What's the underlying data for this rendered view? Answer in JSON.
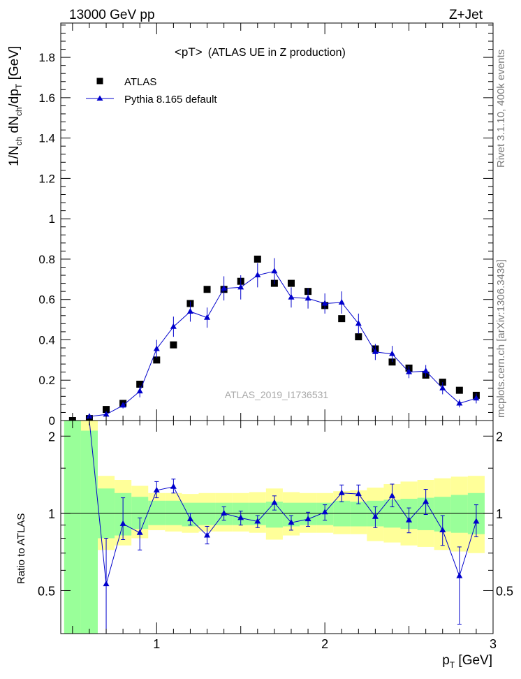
{
  "header": {
    "left_label": "13000 GeV pp",
    "right_label": "Z+Jet"
  },
  "side_labels": {
    "rivet": "Rivet 3.1.10,  400k events",
    "mcplots": "mcplots.cern.ch [arXiv:1306.3436]"
  },
  "chart_data": [
    {
      "type": "scatter",
      "title": "<pT>",
      "subtitle": "(ATLAS UE in Z production)",
      "watermark": "ATLAS_2019_I1736531",
      "xlabel_main": "p",
      "xlabel_sub": "T",
      "xlabel_unit": " [GeV]",
      "ylabel_parts": [
        "1/N",
        "ch",
        " dN",
        "ch",
        "/dp",
        "T",
        " [GeV]"
      ],
      "xlim": [
        0.43,
        3.0
      ],
      "ylim": [
        0,
        1.97
      ],
      "x_ticks": [
        "1",
        "2",
        "3"
      ],
      "y_ticks": [
        "0",
        "0.2",
        "0.4",
        "0.6",
        "0.8",
        "1",
        "1.2",
        "1.4",
        "1.6",
        "1.8"
      ],
      "legend_position": "top-left",
      "series": [
        {
          "name": "ATLAS",
          "style": "markers-square",
          "color": "#000000",
          "x": [
            0.5,
            0.6,
            0.7,
            0.8,
            0.9,
            1.0,
            1.1,
            1.2,
            1.3,
            1.4,
            1.5,
            1.6,
            1.7,
            1.8,
            1.9,
            2.0,
            2.1,
            2.2,
            2.3,
            2.4,
            2.5,
            2.6,
            2.7,
            2.8,
            2.9
          ],
          "y": [
            0.0,
            0.01,
            0.055,
            0.085,
            0.18,
            0.3,
            0.375,
            0.58,
            0.65,
            0.65,
            0.69,
            0.8,
            0.68,
            0.68,
            0.64,
            0.57,
            0.505,
            0.415,
            0.355,
            0.29,
            0.26,
            0.225,
            0.19,
            0.15,
            0.125
          ]
        },
        {
          "name": "Pythia 8.165 default",
          "style": "line-triangle",
          "color": "#0000cc",
          "x": [
            0.6,
            0.7,
            0.8,
            0.9,
            1.0,
            1.1,
            1.2,
            1.3,
            1.4,
            1.5,
            1.6,
            1.7,
            1.8,
            1.9,
            2.0,
            2.1,
            2.2,
            2.3,
            2.4,
            2.5,
            2.6,
            2.7,
            2.8,
            2.9
          ],
          "y": [
            0.02,
            0.03,
            0.075,
            0.145,
            0.355,
            0.465,
            0.54,
            0.51,
            0.655,
            0.66,
            0.72,
            0.74,
            0.61,
            0.605,
            0.58,
            0.585,
            0.48,
            0.34,
            0.33,
            0.24,
            0.245,
            0.16,
            0.085,
            0.11
          ],
          "yerr": [
            0.005,
            0.01,
            0.015,
            0.03,
            0.045,
            0.05,
            0.05,
            0.05,
            0.06,
            0.06,
            0.06,
            0.065,
            0.05,
            0.05,
            0.05,
            0.055,
            0.05,
            0.04,
            0.04,
            0.03,
            0.03,
            0.03,
            0.02,
            0.025
          ]
        }
      ]
    },
    {
      "type": "scatter",
      "title": "",
      "ylabel": "Ratio to ATLAS",
      "xlim": [
        0.43,
        3.0
      ],
      "ylim": [
        0.34,
        2.3
      ],
      "x_ticks": [
        "1",
        "2",
        "3"
      ],
      "y_ticks": [
        "0.5",
        "1",
        "2"
      ],
      "reference_line": 1,
      "colors": {
        "band_inner": "#99ff99",
        "band_outer": "#ffff99",
        "ratio": "#0000cc"
      },
      "band": {
        "x_edges": [
          0.45,
          0.55,
          0.65,
          0.75,
          0.85,
          0.95,
          1.05,
          1.15,
          1.25,
          1.35,
          1.45,
          1.55,
          1.65,
          1.75,
          1.85,
          1.95,
          2.05,
          2.15,
          2.25,
          2.35,
          2.45,
          2.55,
          2.65,
          2.75,
          2.85,
          2.95
        ],
        "inner_low": [
          0.34,
          0.34,
          0.8,
          0.82,
          0.87,
          0.9,
          0.9,
          0.89,
          0.9,
          0.9,
          0.9,
          0.9,
          0.88,
          0.89,
          0.9,
          0.9,
          0.89,
          0.89,
          0.89,
          0.88,
          0.87,
          0.86,
          0.85,
          0.84,
          0.83
        ],
        "inner_high": [
          2.3,
          2.1,
          1.25,
          1.2,
          1.16,
          1.12,
          1.12,
          1.1,
          1.1,
          1.1,
          1.1,
          1.1,
          1.11,
          1.1,
          1.1,
          1.1,
          1.12,
          1.11,
          1.12,
          1.13,
          1.14,
          1.15,
          1.16,
          1.18,
          1.2
        ],
        "outer_low": [
          0.34,
          0.34,
          0.72,
          0.75,
          0.8,
          0.86,
          0.85,
          0.84,
          0.85,
          0.85,
          0.85,
          0.84,
          0.79,
          0.82,
          0.84,
          0.84,
          0.83,
          0.83,
          0.78,
          0.77,
          0.75,
          0.74,
          0.72,
          0.71,
          0.7
        ],
        "outer_high": [
          2.3,
          2.3,
          1.4,
          1.35,
          1.28,
          1.2,
          1.2,
          1.19,
          1.2,
          1.2,
          1.2,
          1.21,
          1.25,
          1.21,
          1.2,
          1.2,
          1.22,
          1.23,
          1.26,
          1.3,
          1.33,
          1.35,
          1.37,
          1.39,
          1.4
        ]
      },
      "series": [
        {
          "name": "Pythia 8.165 default",
          "style": "line-triangle",
          "color": "#0000cc",
          "x": [
            0.7,
            0.8,
            0.9,
            1.0,
            1.1,
            1.2,
            1.3,
            1.4,
            1.5,
            1.6,
            1.7,
            1.8,
            1.9,
            2.0,
            2.1,
            2.2,
            2.3,
            2.4,
            2.5,
            2.6,
            2.7,
            2.8,
            2.9
          ],
          "y": [
            0.53,
            0.91,
            0.84,
            1.23,
            1.27,
            0.95,
            0.82,
            1.0,
            0.96,
            0.93,
            1.1,
            0.92,
            0.95,
            1.01,
            1.2,
            1.19,
            0.97,
            1.17,
            0.94,
            1.11,
            0.86,
            0.57,
            0.93
          ],
          "yerr_low": [
            0.19,
            0.12,
            0.12,
            0.08,
            0.07,
            0.05,
            0.06,
            0.06,
            0.06,
            0.05,
            0.07,
            0.06,
            0.06,
            0.07,
            0.09,
            0.1,
            0.09,
            0.11,
            0.1,
            0.12,
            0.11,
            0.2,
            0.12
          ],
          "yerr_high": [
            0.27,
            0.24,
            0.12,
            0.1,
            0.09,
            0.05,
            0.07,
            0.06,
            0.06,
            0.05,
            0.07,
            0.06,
            0.06,
            0.07,
            0.09,
            0.1,
            0.09,
            0.13,
            0.11,
            0.13,
            0.12,
            0.17,
            0.15
          ]
        }
      ]
    }
  ]
}
